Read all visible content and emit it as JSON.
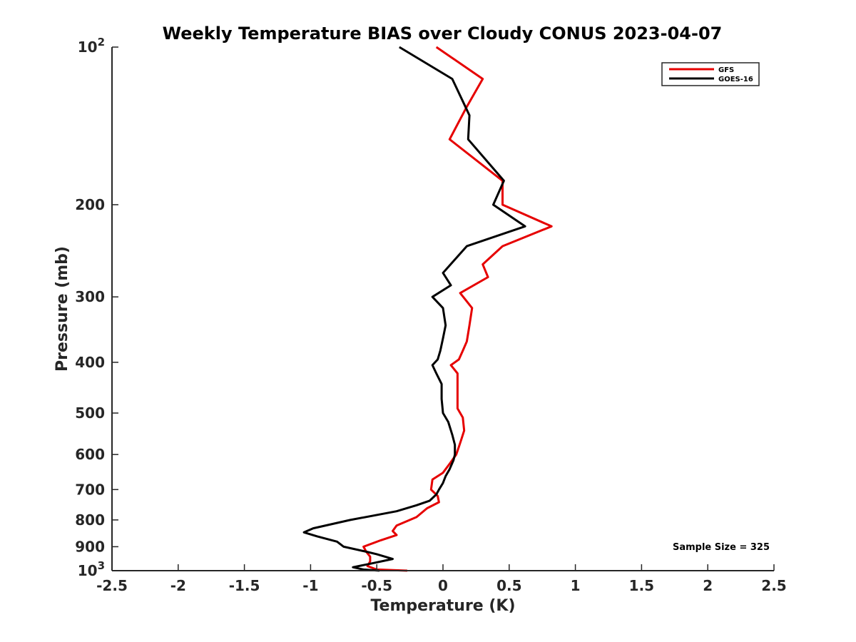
{
  "chart_data": {
    "type": "line",
    "title": "Weekly Temperature BIAS over Cloudy CONUS 2023-04-07",
    "xlabel": "Temperature (K)",
    "ylabel": "Pressure (mb)",
    "xlim": [
      -2.5,
      2.5
    ],
    "ylim": [
      1000,
      100
    ],
    "y_scale": "log",
    "y_reversed": true,
    "grid": false,
    "legend_position": "top-right",
    "x_ticks": [
      "-2.5",
      "-2",
      "-1.5",
      "-1",
      "-0.5",
      "0",
      "0.5",
      "1",
      "1.5",
      "2",
      "2.5"
    ],
    "x_tick_values": [
      -2.5,
      -2,
      -1.5,
      -1,
      -0.5,
      0,
      0.5,
      1,
      1.5,
      2,
      2.5
    ],
    "y_ticks": [
      {
        "value": 100,
        "base": "10",
        "exp": "2"
      },
      {
        "value": 200,
        "label": "200"
      },
      {
        "value": 300,
        "label": "300"
      },
      {
        "value": 400,
        "label": "400"
      },
      {
        "value": 500,
        "label": "500"
      },
      {
        "value": 600,
        "label": "600"
      },
      {
        "value": 700,
        "label": "700"
      },
      {
        "value": 800,
        "label": "800"
      },
      {
        "value": 900,
        "label": "900"
      },
      {
        "value": 1000,
        "base": "10",
        "exp": "3"
      }
    ],
    "annotation": "Sample Size = 325",
    "series": [
      {
        "name": "GFS",
        "color": "#e60000",
        "x": [
          -0.05,
          0.3,
          0.18,
          0.05,
          0.45,
          0.45,
          0.82,
          0.45,
          0.3,
          0.34,
          0.13,
          0.22,
          0.2,
          0.18,
          0.15,
          0.12,
          0.06,
          0.11,
          0.11,
          0.11,
          0.11,
          0.15,
          0.16,
          0.14,
          0.12,
          0.1,
          0.05,
          0.0,
          -0.08,
          -0.09,
          -0.04,
          -0.03,
          -0.12,
          -0.2,
          -0.35,
          -0.38,
          -0.35,
          -0.47,
          -0.6,
          -0.58,
          -0.55,
          -0.55,
          -0.57,
          -0.5,
          -0.27
        ],
        "y": [
          100,
          115,
          130,
          150,
          180,
          200,
          220,
          240,
          260,
          275,
          295,
          315,
          340,
          365,
          380,
          395,
          405,
          420,
          440,
          470,
          490,
          510,
          540,
          560,
          580,
          600,
          625,
          650,
          670,
          700,
          720,
          740,
          760,
          790,
          820,
          840,
          855,
          875,
          900,
          920,
          940,
          960,
          980,
          995,
          1000
        ]
      },
      {
        "name": "GOES-16",
        "color": "#000000",
        "x": [
          -0.33,
          0.07,
          0.2,
          0.19,
          0.46,
          0.38,
          0.62,
          0.18,
          0.0,
          0.06,
          -0.08,
          0.0,
          0.02,
          0.0,
          -0.02,
          -0.04,
          -0.08,
          -0.05,
          -0.01,
          -0.01,
          0.0,
          0.04,
          0.07,
          0.09,
          0.09,
          0.08,
          0.05,
          0.02,
          0.0,
          -0.03,
          -0.05,
          -0.1,
          -0.2,
          -0.35,
          -0.7,
          -0.98,
          -1.05,
          -0.95,
          -0.8,
          -0.75,
          -0.58,
          -0.5,
          -0.38,
          -0.55,
          -0.68,
          -0.6,
          -0.48
        ],
        "y": [
          100,
          115,
          135,
          150,
          180,
          200,
          220,
          240,
          270,
          285,
          300,
          315,
          340,
          360,
          380,
          395,
          405,
          420,
          440,
          470,
          500,
          520,
          550,
          575,
          600,
          615,
          640,
          660,
          680,
          700,
          715,
          735,
          750,
          770,
          800,
          830,
          845,
          860,
          880,
          900,
          920,
          930,
          950,
          970,
          985,
          995,
          1000
        ]
      }
    ]
  }
}
